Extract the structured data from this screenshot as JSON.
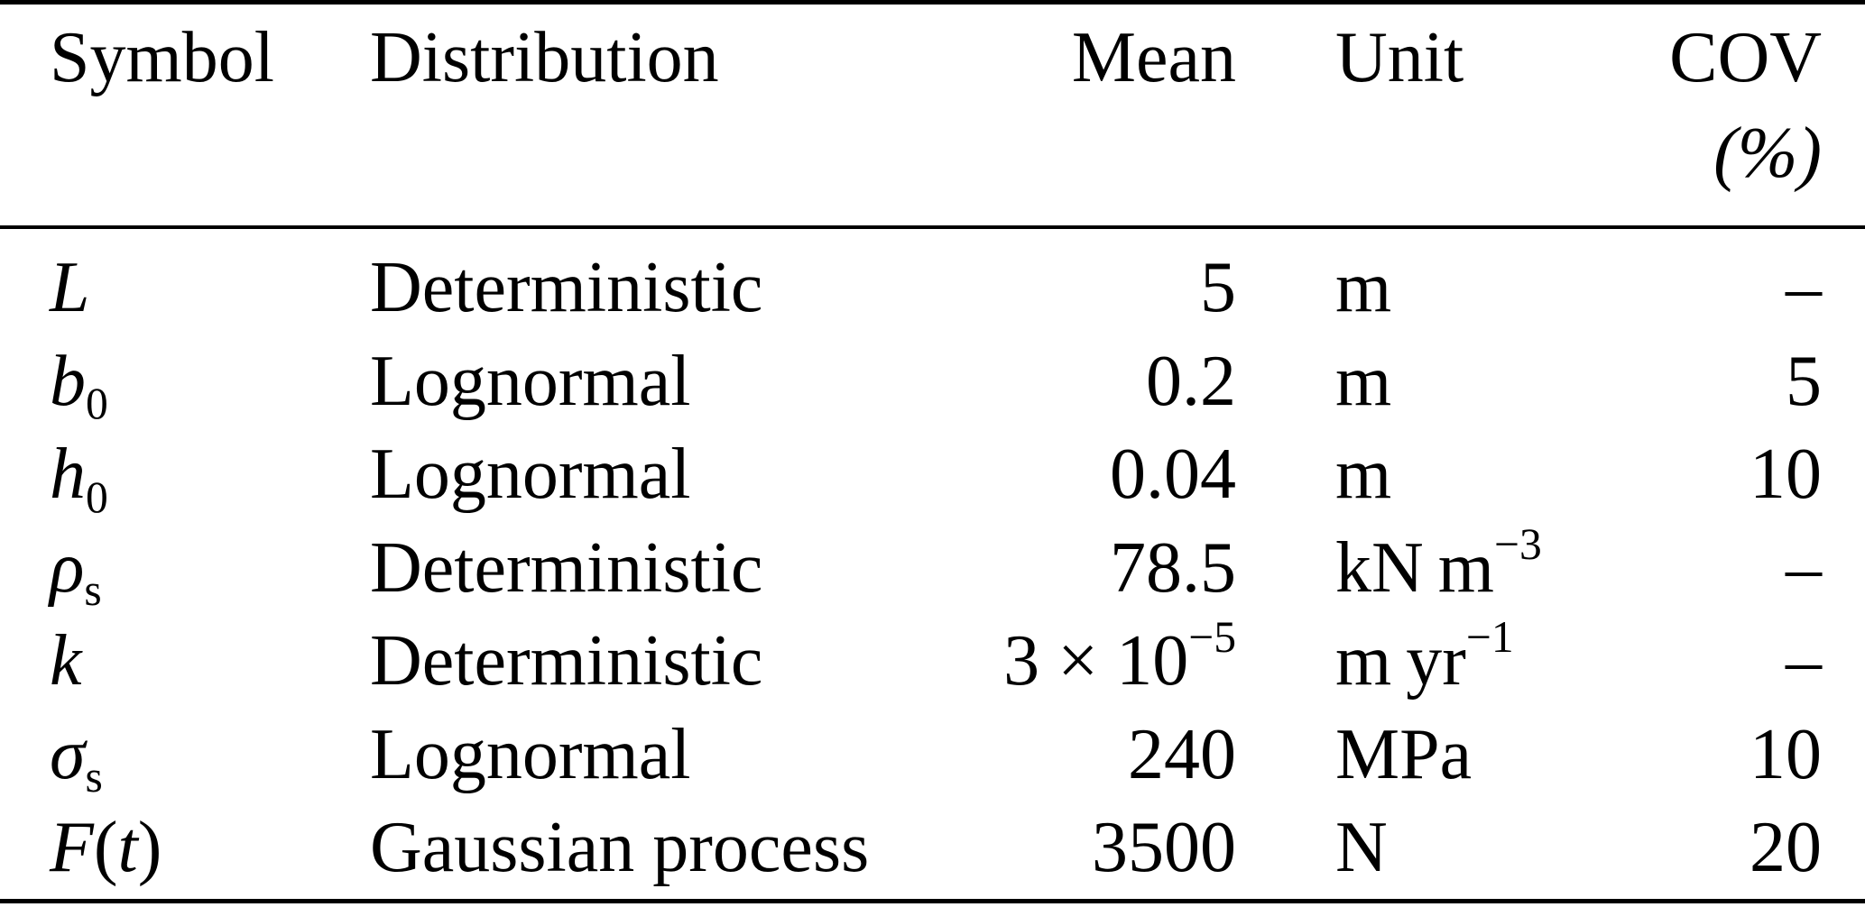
{
  "colors": {
    "background": "#ffffff",
    "text": "#000000",
    "rule": "#000000"
  },
  "table": {
    "header": {
      "symbol": "Symbol",
      "distribution": "Distribution",
      "mean": "Mean",
      "unit": "Unit",
      "cov_line1": "COV",
      "cov_line2": "(%)"
    },
    "rows": [
      {
        "symbol": [
          {
            "t": "L",
            "s": "i"
          }
        ],
        "distribution": [
          {
            "t": "Deterministic",
            "s": ""
          }
        ],
        "mean": [
          {
            "t": "5",
            "s": ""
          }
        ],
        "unit": [
          {
            "t": "m",
            "s": ""
          }
        ],
        "cov": [
          {
            "t": "–",
            "s": ""
          }
        ]
      },
      {
        "symbol": [
          {
            "t": "b",
            "s": "i"
          },
          {
            "t": "0",
            "s": "sub"
          }
        ],
        "distribution": [
          {
            "t": "Lognormal",
            "s": ""
          }
        ],
        "mean": [
          {
            "t": "0.2",
            "s": ""
          }
        ],
        "unit": [
          {
            "t": "m",
            "s": ""
          }
        ],
        "cov": [
          {
            "t": "5",
            "s": ""
          }
        ]
      },
      {
        "symbol": [
          {
            "t": "h",
            "s": "i"
          },
          {
            "t": "0",
            "s": "sub"
          }
        ],
        "distribution": [
          {
            "t": "Lognormal",
            "s": ""
          }
        ],
        "mean": [
          {
            "t": "0.04",
            "s": ""
          }
        ],
        "unit": [
          {
            "t": "m",
            "s": ""
          }
        ],
        "cov": [
          {
            "t": "10",
            "s": ""
          }
        ]
      },
      {
        "symbol": [
          {
            "t": "ρ",
            "s": "i"
          },
          {
            "t": "s",
            "s": "sub"
          }
        ],
        "distribution": [
          {
            "t": "Deterministic",
            "s": ""
          }
        ],
        "mean": [
          {
            "t": "78.5",
            "s": ""
          }
        ],
        "unit": [
          {
            "t": "kN m",
            "s": ""
          },
          {
            "t": "−3",
            "s": "sup"
          }
        ],
        "cov": [
          {
            "t": "–",
            "s": ""
          }
        ]
      },
      {
        "symbol": [
          {
            "t": "k",
            "s": "i"
          }
        ],
        "distribution": [
          {
            "t": "Deterministic",
            "s": ""
          }
        ],
        "mean": [
          {
            "t": "3 × 10",
            "s": ""
          },
          {
            "t": "−5",
            "s": "sup"
          }
        ],
        "unit": [
          {
            "t": "m yr",
            "s": ""
          },
          {
            "t": "−1",
            "s": "sup"
          }
        ],
        "cov": [
          {
            "t": "–",
            "s": ""
          }
        ]
      },
      {
        "symbol": [
          {
            "t": "σ",
            "s": "i"
          },
          {
            "t": "s",
            "s": "sub"
          }
        ],
        "distribution": [
          {
            "t": "Lognormal",
            "s": ""
          }
        ],
        "mean": [
          {
            "t": "240",
            "s": ""
          }
        ],
        "unit": [
          {
            "t": "MPa",
            "s": ""
          }
        ],
        "cov": [
          {
            "t": "10",
            "s": ""
          }
        ]
      },
      {
        "symbol": [
          {
            "t": "F",
            "s": "i"
          },
          {
            "t": "(",
            "s": ""
          },
          {
            "t": "t",
            "s": "i"
          },
          {
            "t": ")",
            "s": ""
          }
        ],
        "distribution": [
          {
            "t": "Gaussian process",
            "s": ""
          }
        ],
        "mean": [
          {
            "t": "3500",
            "s": ""
          }
        ],
        "unit": [
          {
            "t": "N",
            "s": ""
          }
        ],
        "cov": [
          {
            "t": "20",
            "s": ""
          }
        ]
      }
    ]
  }
}
